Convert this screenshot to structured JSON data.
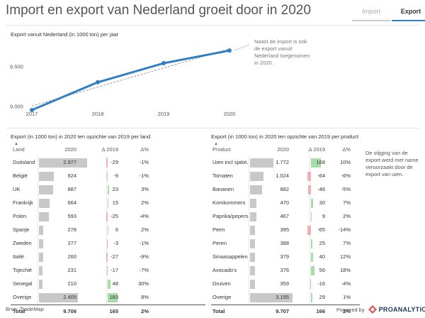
{
  "header": {
    "title": "Import en export van Nederland groeit door in 2020"
  },
  "tabs": [
    {
      "label": "Import",
      "active": false
    },
    {
      "label": "Export",
      "active": true
    }
  ],
  "chart_data": {
    "type": "line",
    "title": "Export vanuit Nederland (in 1000 ton) per jaar",
    "x": [
      "2017",
      "2018",
      "2019",
      "2020"
    ],
    "series": [
      {
        "name": "Export",
        "values": [
          8950,
          9300,
          9540,
          9700
        ]
      }
    ],
    "trend": [
      9000,
      9240,
      9480,
      9720
    ],
    "yticks": [
      {
        "value": 9000,
        "label": "9.000"
      },
      {
        "value": 9500,
        "label": "9.500"
      }
    ],
    "ylim": [
      8950,
      9800
    ],
    "annotation": "Naast de import is ook de export vanuit Nederland toegenomen in 2020."
  },
  "table_country": {
    "title": "Export (in 1000 ton) in 2020 ten opzichte van 2019 per land",
    "columns": [
      "Land",
      "2020",
      "Δ 2019",
      "Δ%"
    ],
    "max_value": 2977,
    "max_delta": 183,
    "rows": [
      {
        "name": "Duitsland",
        "v": "2.977",
        "n": 2977,
        "d": "-29",
        "dn": -29,
        "p": "-1%"
      },
      {
        "name": "België",
        "v": "924",
        "n": 924,
        "d": "-9",
        "dn": -9,
        "p": "-1%"
      },
      {
        "name": "UK",
        "v": "887",
        "n": 887,
        "d": "23",
        "dn": 23,
        "p": "3%"
      },
      {
        "name": "Frankrijk",
        "v": "664",
        "n": 664,
        "d": "15",
        "dn": 15,
        "p": "2%"
      },
      {
        "name": "Polen",
        "v": "593",
        "n": 593,
        "d": "-25",
        "dn": -25,
        "p": "-4%"
      },
      {
        "name": "Spanje",
        "v": "278",
        "n": 278,
        "d": "6",
        "dn": 6,
        "p": "2%"
      },
      {
        "name": "Zweden",
        "v": "277",
        "n": 277,
        "d": "-3",
        "dn": -3,
        "p": "-1%"
      },
      {
        "name": "Italië",
        "v": "260",
        "n": 260,
        "d": "-27",
        "dn": -27,
        "p": "-9%"
      },
      {
        "name": "Tsjechië",
        "v": "231",
        "n": 231,
        "d": "-17",
        "dn": -17,
        "p": "-7%"
      },
      {
        "name": "Senegal",
        "v": "210",
        "n": 210,
        "d": "48",
        "dn": 48,
        "p": "30%"
      },
      {
        "name": "Overige",
        "v": "2.405",
        "n": 2405,
        "d": "183",
        "dn": 183,
        "p": "8%"
      }
    ],
    "total": {
      "name": "Total",
      "v": "9.706",
      "d": "165",
      "p": "2%"
    }
  },
  "table_product": {
    "title": "Export (in 1000 ton) in 2020 ten opzichte van 2019 per product",
    "columns": [
      "Product",
      "2020",
      "Δ 2019",
      "Δ%"
    ],
    "max_value": 3195,
    "max_delta": 168,
    "rows": [
      {
        "name": "Uien incl sjalot.",
        "v": "1.772",
        "n": 1772,
        "d": "168",
        "dn": 168,
        "p": "10%"
      },
      {
        "name": "Tomaten",
        "v": "1.024",
        "n": 1024,
        "d": "-64",
        "dn": -64,
        "p": "-6%"
      },
      {
        "name": "Bananen",
        "v": "882",
        "n": 882,
        "d": "-46",
        "dn": -46,
        "p": "-5%"
      },
      {
        "name": "Komkommers",
        "v": "470",
        "n": 470,
        "d": "30",
        "dn": 30,
        "p": "7%"
      },
      {
        "name": "Paprika/pepers",
        "v": "467",
        "n": 467,
        "d": "9",
        "dn": 9,
        "p": "2%"
      },
      {
        "name": "Peen",
        "v": "395",
        "n": 395,
        "d": "-65",
        "dn": -65,
        "p": "-14%"
      },
      {
        "name": "Peren",
        "v": "388",
        "n": 388,
        "d": "25",
        "dn": 25,
        "p": "7%"
      },
      {
        "name": "Sinaasappelen",
        "v": "379",
        "n": 379,
        "d": "40",
        "dn": 40,
        "p": "12%"
      },
      {
        "name": "Avocado's",
        "v": "376",
        "n": 376,
        "d": "56",
        "dn": 56,
        "p": "18%"
      },
      {
        "name": "Druiven",
        "v": "359",
        "n": 359,
        "d": "-16",
        "dn": -16,
        "p": "-4%"
      },
      {
        "name": "Overige",
        "v": "3.195",
        "n": 3195,
        "d": "29",
        "dn": 29,
        "p": "1%"
      }
    ],
    "total": {
      "name": "Total",
      "v": "9.707",
      "d": "166",
      "p": "2%"
    },
    "annotation": "De stijging van de export werd met name veroorzaakt door de export van uien."
  },
  "footer": {
    "source": "Bron: TradeMap",
    "powered": "Powered by",
    "brand": "PROANALYTICS"
  },
  "colors": {
    "accent": "#2f7fc1",
    "bar": "#c8c8c8",
    "positive": "#a8dca8",
    "negative": "#f3b0b0"
  }
}
